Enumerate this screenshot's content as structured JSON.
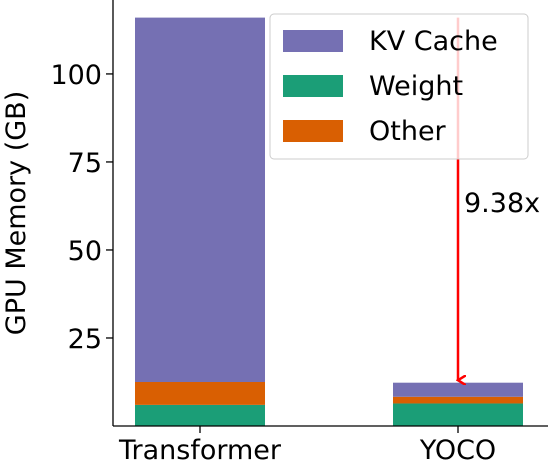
{
  "chart_data": {
    "type": "bar",
    "stacked": true,
    "title": "",
    "xlabel": "",
    "ylabel": "GPU Memory (GB)",
    "ylim": [
      0,
      121
    ],
    "yticks": [
      25,
      50,
      75,
      100
    ],
    "categories": [
      "Transformer",
      "YOCO"
    ],
    "series": [
      {
        "name": "Weight",
        "color": "#1b9e77",
        "values": [
          6.0,
          6.4
        ]
      },
      {
        "name": "Other",
        "color": "#d95f02",
        "values": [
          6.5,
          1.9
        ]
      },
      {
        "name": "KV Cache",
        "color": "#7570b3",
        "values": [
          103.5,
          4.0
        ]
      }
    ],
    "legend": {
      "placement": "upper right",
      "order": [
        "KV Cache",
        "Weight",
        "Other"
      ]
    },
    "grid": false,
    "annotation": {
      "text": "9.38x",
      "arrow_from": 116,
      "arrow_to": 13,
      "color": "#ff0000",
      "category": "YOCO"
    }
  }
}
